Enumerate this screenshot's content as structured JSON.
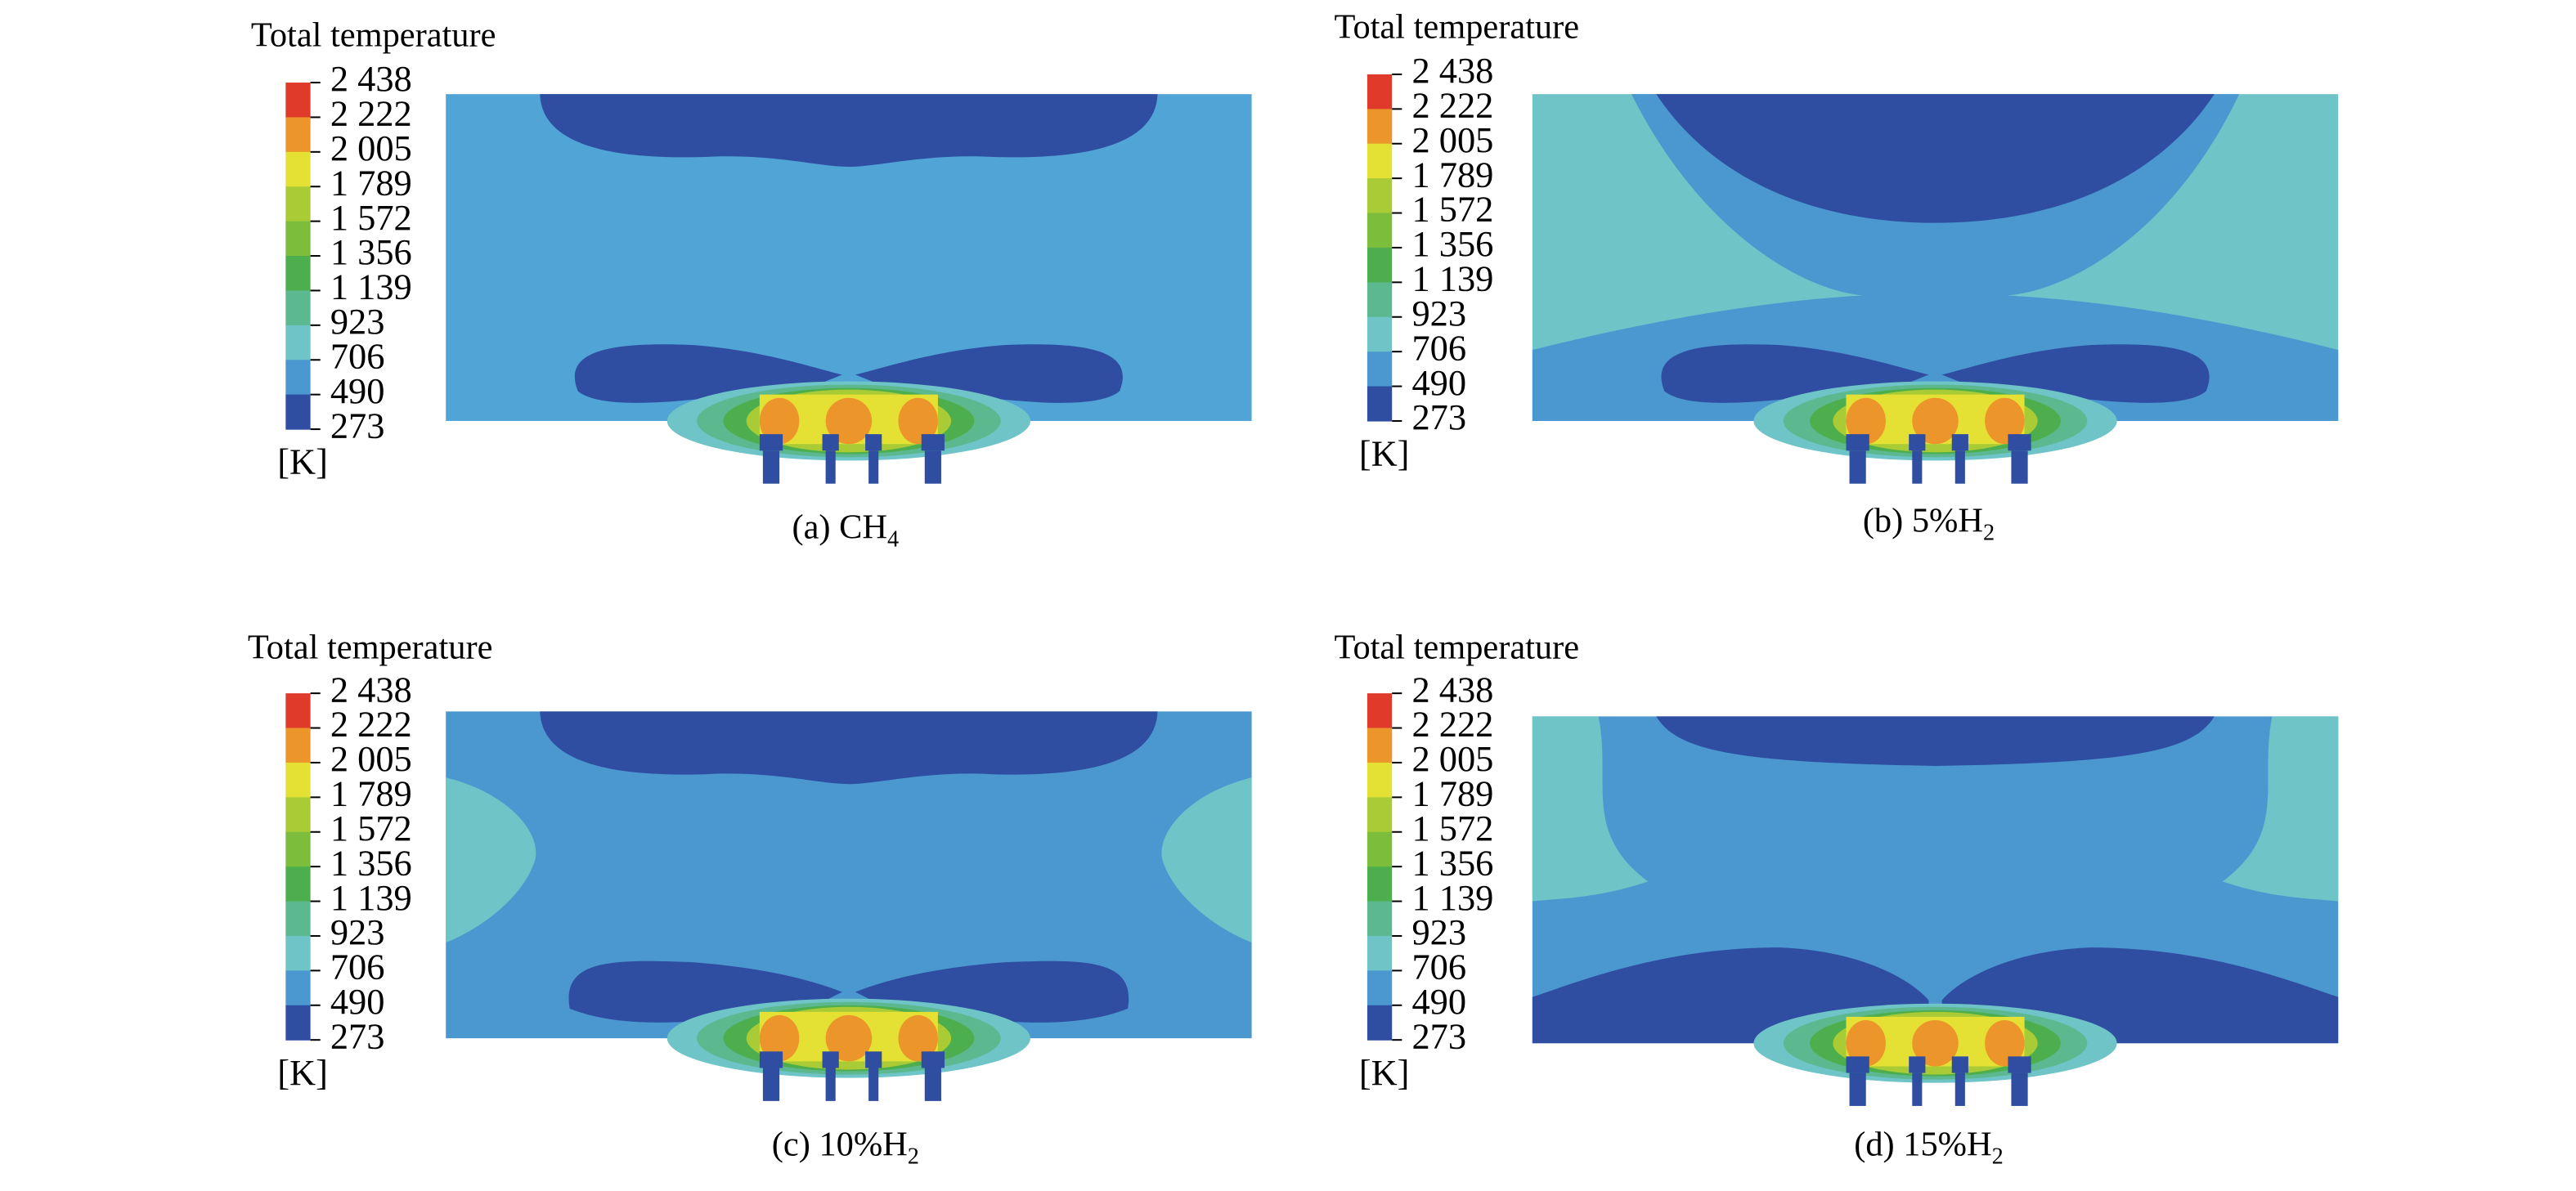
{
  "panels": [
    {
      "title": "Total temperature",
      "legend_ticks": [
        "2 438",
        "2 222",
        "2 005",
        "1 789",
        "1 572",
        "1 356",
        "1 139",
        "923",
        "706",
        "490",
        "273"
      ],
      "unit": "[K]",
      "caption": {
        "text": "(a) CH",
        "sub": "4"
      }
    },
    {
      "title": "Total temperature",
      "legend_ticks": [
        "2 438",
        "2 222",
        "2 005",
        "1 789",
        "1 572",
        "1 356",
        "1 139",
        "923",
        "706",
        "490",
        "273"
      ],
      "unit": "[K]",
      "caption": {
        "text": "(b) 5%H",
        "sub": "2"
      }
    },
    {
      "title": "Total temperature",
      "legend_ticks": [
        "2 438",
        "2 222",
        "2 005",
        "1 789",
        "1 572",
        "1 356",
        "1 139",
        "923",
        "706",
        "490",
        "273"
      ],
      "unit": "[K]",
      "caption": {
        "text": "(c) 10%H",
        "sub": "2"
      }
    },
    {
      "title": "Total temperature",
      "legend_ticks": [
        "2 438",
        "2 222",
        "2 005",
        "1 789",
        "1 572",
        "1 356",
        "1 139",
        "923",
        "706",
        "490",
        "273"
      ],
      "unit": "[K]",
      "caption": {
        "text": "(d) 15%H",
        "sub": "2"
      }
    }
  ]
}
